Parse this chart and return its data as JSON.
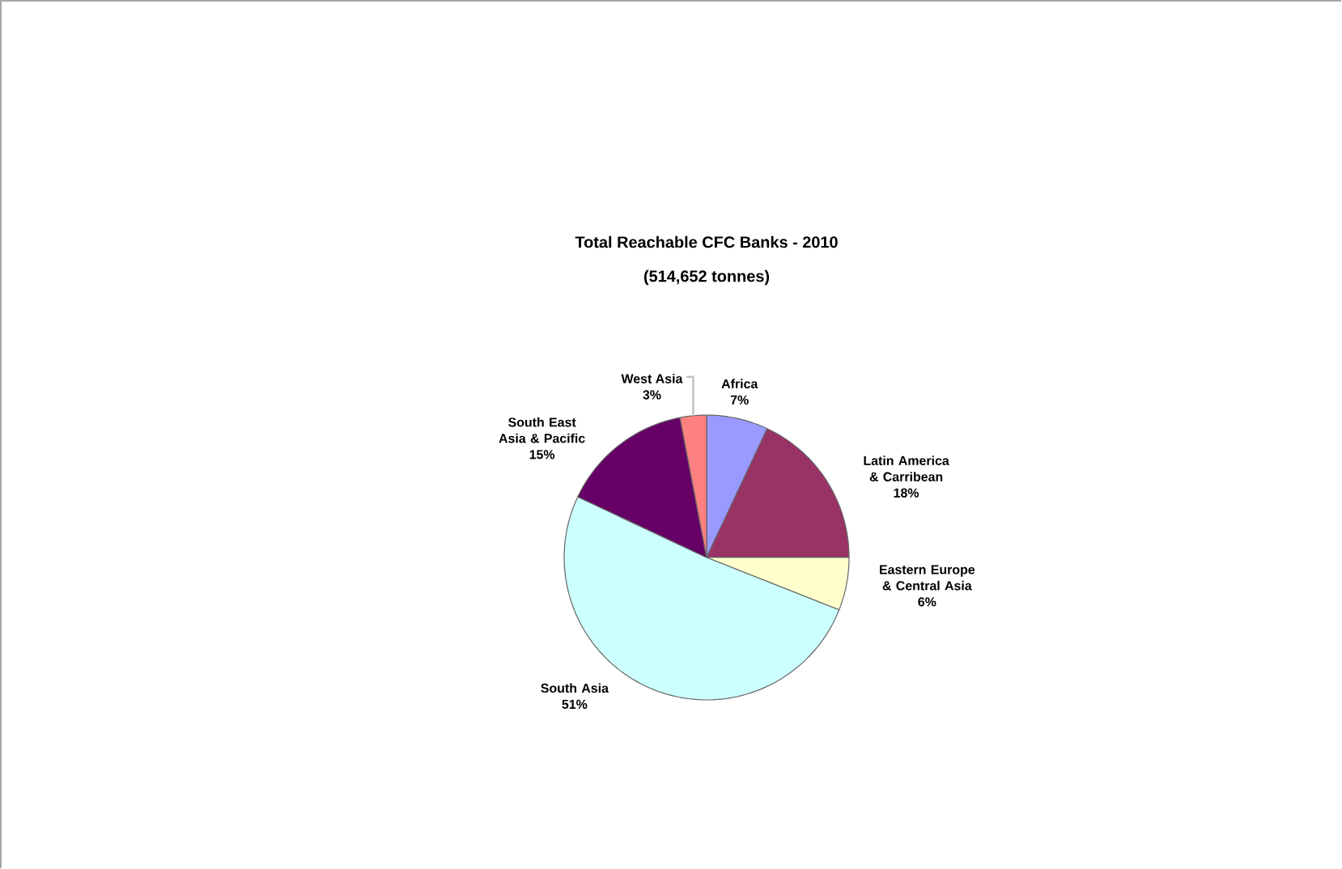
{
  "chart_data": {
    "type": "pie",
    "title": "Total Reachable CFC Banks - 2010",
    "subtitle": "(514,652 tonnes)",
    "categories": [
      "Africa",
      "Latin America & Carribean",
      "Eastern Europe & Central Asia",
      "South Asia",
      "South East Asia & Pacific",
      "West Asia"
    ],
    "values": [
      7,
      18,
      6,
      51,
      15,
      3
    ],
    "value_labels": [
      "7%",
      "18%",
      "6%",
      "51%",
      "15%",
      "3%"
    ],
    "colors": [
      "#9999ff",
      "#993366",
      "#ffffcc",
      "#ccffff",
      "#660066",
      "#ff8080"
    ]
  }
}
